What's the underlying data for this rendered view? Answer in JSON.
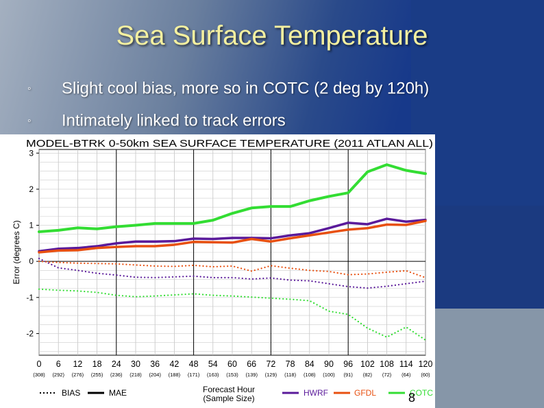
{
  "slide": {
    "title": "Sea Surface Temperature",
    "bullet_icon": "hollow-circle-bullet",
    "bullets": [
      {
        "text": "Slight cool bias, more so in COTC (2 deg by 120h)"
      },
      {
        "text": "Intimately linked to track errors"
      }
    ],
    "page_number": "8",
    "colors": {
      "title": "#f4f0a0",
      "background_dark": "#1a3a7a",
      "background_light": "#8a98a8"
    }
  },
  "chart_data": {
    "type": "line",
    "title": "MODEL-BTRK 0-50km SEA SURFACE TEMPERATURE (2011 ATLAN ALL)",
    "xlabel": "Forecast Hour",
    "xlabel2": "(Sample Size)",
    "ylabel": "Error (degrees C)",
    "x": [
      0,
      6,
      12,
      18,
      24,
      30,
      36,
      42,
      48,
      54,
      60,
      66,
      72,
      78,
      84,
      90,
      96,
      102,
      108,
      114,
      120
    ],
    "x_tick_labels": [
      "0",
      "6",
      "12",
      "18",
      "24",
      "30",
      "36",
      "42",
      "48",
      "54",
      "60",
      "66",
      "72",
      "78",
      "84",
      "90",
      "96",
      "102",
      "108",
      "114",
      "120"
    ],
    "sample_sizes": [
      "(308)",
      "(292)",
      "(276)",
      "(255)",
      "(236)",
      "(218)",
      "(204)",
      "(188)",
      "(171)",
      "(163)",
      "(153)",
      "(139)",
      "(129)",
      "(118)",
      "(108)",
      "(100)",
      "(91)",
      "(82)",
      "(72)",
      "(64)",
      "(60)"
    ],
    "ylim": [
      -2.6,
      3.1
    ],
    "y_ticks": [
      -2,
      -1,
      0,
      1,
      2,
      3
    ],
    "vertical_lines": [
      24,
      48,
      72,
      96
    ],
    "grid": true,
    "series": [
      {
        "name": "HWRF",
        "metric": "MAE",
        "color": "#5a1a9a",
        "values": [
          0.28,
          0.35,
          0.37,
          0.42,
          0.5,
          0.55,
          0.55,
          0.56,
          0.63,
          0.62,
          0.65,
          0.65,
          0.64,
          0.72,
          0.78,
          0.92,
          1.07,
          1.03,
          1.18,
          1.1,
          1.15
        ]
      },
      {
        "name": "GFDL",
        "metric": "MAE",
        "color": "#e85010",
        "values": [
          0.25,
          0.3,
          0.31,
          0.37,
          0.4,
          0.42,
          0.42,
          0.46,
          0.54,
          0.53,
          0.52,
          0.62,
          0.55,
          0.64,
          0.72,
          0.8,
          0.88,
          0.92,
          1.02,
          1.01,
          1.12
        ]
      },
      {
        "name": "COTC",
        "metric": "MAE",
        "color": "#33dd33",
        "values": [
          0.82,
          0.86,
          0.93,
          0.9,
          0.96,
          1.0,
          1.05,
          1.05,
          1.05,
          1.14,
          1.33,
          1.48,
          1.52,
          1.52,
          1.68,
          1.8,
          1.9,
          2.48,
          2.68,
          2.52,
          2.43
        ]
      },
      {
        "name": "HWRF",
        "metric": "BIAS",
        "color": "#5a1a9a",
        "values": [
          0.08,
          -0.18,
          -0.25,
          -0.33,
          -0.38,
          -0.44,
          -0.45,
          -0.43,
          -0.41,
          -0.45,
          -0.45,
          -0.49,
          -0.46,
          -0.52,
          -0.54,
          -0.62,
          -0.7,
          -0.74,
          -0.69,
          -0.62,
          -0.55
        ]
      },
      {
        "name": "GFDL",
        "metric": "BIAS",
        "color": "#e85010",
        "values": [
          0.0,
          -0.03,
          -0.05,
          -0.06,
          -0.07,
          -0.1,
          -0.13,
          -0.14,
          -0.11,
          -0.15,
          -0.13,
          -0.27,
          -0.12,
          -0.19,
          -0.25,
          -0.28,
          -0.37,
          -0.35,
          -0.3,
          -0.26,
          -0.45
        ]
      },
      {
        "name": "COTC",
        "metric": "BIAS",
        "color": "#33dd33",
        "values": [
          -0.77,
          -0.8,
          -0.82,
          -0.86,
          -0.94,
          -0.98,
          -0.96,
          -0.93,
          -0.9,
          -0.94,
          -0.96,
          -0.99,
          -1.02,
          -1.05,
          -1.09,
          -1.38,
          -1.47,
          -1.85,
          -2.1,
          -1.82,
          -2.18
        ]
      }
    ],
    "legend": [
      {
        "label": "BIAS",
        "style": "dotted",
        "color": "#000000"
      },
      {
        "label": "MAE",
        "style": "solid",
        "color": "#000000"
      },
      {
        "label": "HWRF",
        "style": "solid",
        "color": "#5a1a9a"
      },
      {
        "label": "GFDL",
        "style": "solid",
        "color": "#e85010"
      },
      {
        "label": "COTC",
        "style": "solid",
        "color": "#33dd33"
      }
    ],
    "legend_position": "bottom"
  }
}
